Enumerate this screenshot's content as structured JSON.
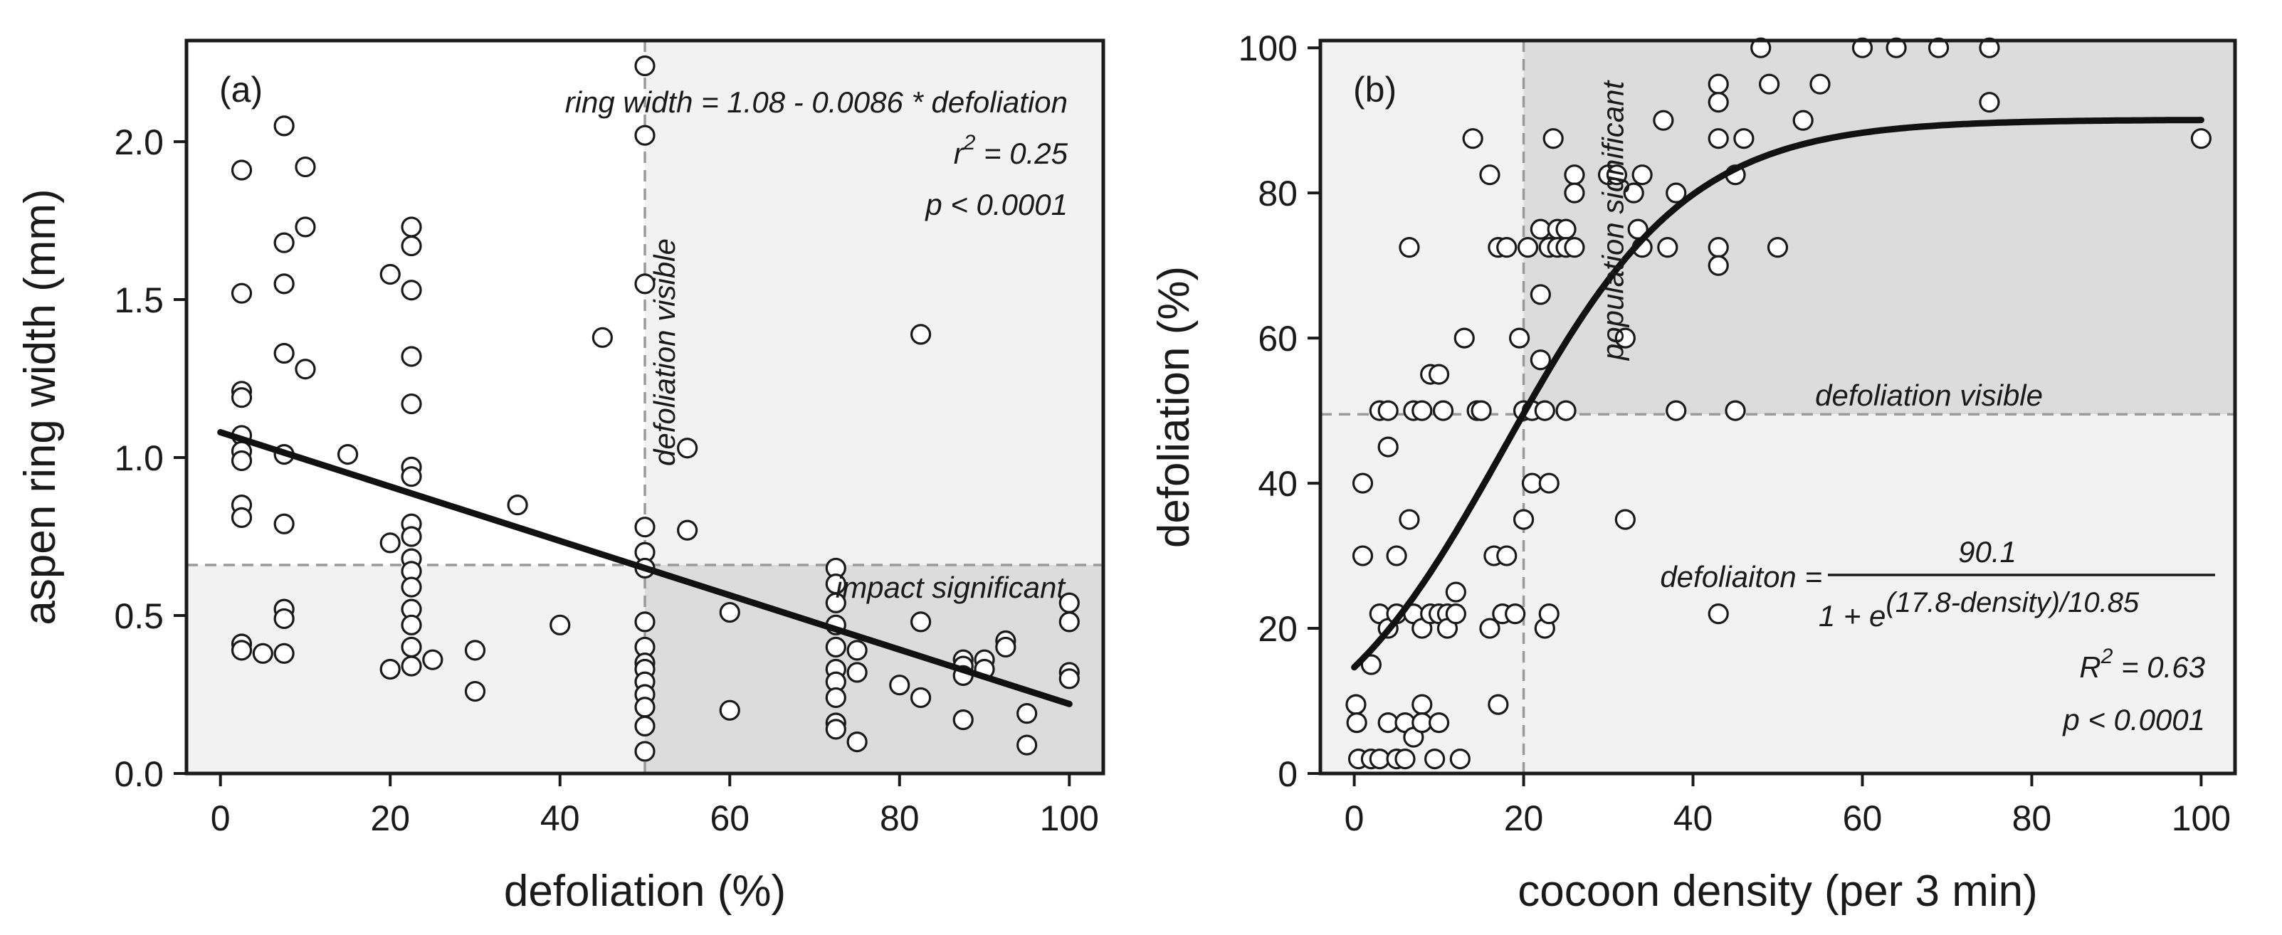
{
  "chart_data": [
    {
      "panel": "(a)",
      "type": "scatter",
      "xlabel": "defoliation (%)",
      "ylabel": "aspen ring width (mm)",
      "xlim": [
        -4,
        104
      ],
      "ylim": [
        0,
        2.32
      ],
      "xticks": [
        0,
        20,
        40,
        60,
        80,
        100
      ],
      "yticks": [
        0.0,
        0.5,
        1.0,
        1.5,
        2.0
      ],
      "ytick_labels": [
        "0.0",
        "0.5",
        "1.0",
        "1.5",
        "2.0"
      ],
      "thresholds": {
        "x": 50,
        "y": 0.66
      },
      "annotations": {
        "equation": "ring width = 1.08 - 0.0086 * defoliation",
        "r2_prefix": "r",
        "r2_exp": "2",
        "r2_value": " = 0.25",
        "p": "p < 0.0001",
        "vertical_label": "defoliation visible",
        "horizontal_label": "impact significant"
      },
      "fit": {
        "type": "linear",
        "intercept": 1.08,
        "slope": -0.0086,
        "x_range": [
          0,
          100
        ]
      },
      "points": [
        [
          2.5,
          1.91
        ],
        [
          2.5,
          1.52
        ],
        [
          2.5,
          1.21
        ],
        [
          2.5,
          1.19
        ],
        [
          2.5,
          1.07
        ],
        [
          2.5,
          1.02
        ],
        [
          2.5,
          0.99
        ],
        [
          2.5,
          0.85
        ],
        [
          2.5,
          0.81
        ],
        [
          2.5,
          0.41
        ],
        [
          2.5,
          0.39
        ],
        [
          5,
          0.38
        ],
        [
          7.5,
          2.05
        ],
        [
          7.5,
          1.68
        ],
        [
          7.5,
          1.55
        ],
        [
          7.5,
          1.33
        ],
        [
          7.5,
          1.01
        ],
        [
          7.5,
          0.79
        ],
        [
          7.5,
          0.52
        ],
        [
          7.5,
          0.49
        ],
        [
          7.5,
          0.38
        ],
        [
          10,
          1.92
        ],
        [
          10,
          1.73
        ],
        [
          10,
          1.28
        ],
        [
          15,
          1.01
        ],
        [
          20,
          1.58
        ],
        [
          20,
          0.73
        ],
        [
          20,
          0.33
        ],
        [
          22.5,
          1.73
        ],
        [
          22.5,
          1.67
        ],
        [
          22.5,
          1.53
        ],
        [
          22.5,
          1.32
        ],
        [
          22.5,
          1.17
        ],
        [
          22.5,
          0.97
        ],
        [
          22.5,
          0.94
        ],
        [
          22.5,
          0.79
        ],
        [
          22.5,
          0.75
        ],
        [
          22.5,
          0.68
        ],
        [
          22.5,
          0.64
        ],
        [
          22.5,
          0.59
        ],
        [
          22.5,
          0.52
        ],
        [
          22.5,
          0.47
        ],
        [
          22.5,
          0.4
        ],
        [
          22.5,
          0.34
        ],
        [
          25,
          0.36
        ],
        [
          30,
          0.39
        ],
        [
          30,
          0.26
        ],
        [
          35,
          0.85
        ],
        [
          40,
          0.47
        ],
        [
          45,
          1.38
        ],
        [
          50,
          2.24
        ],
        [
          50,
          2.02
        ],
        [
          50,
          1.55
        ],
        [
          50,
          0.78
        ],
        [
          50,
          0.7
        ],
        [
          50,
          0.65
        ],
        [
          50,
          0.48
        ],
        [
          50,
          0.4
        ],
        [
          50,
          0.35
        ],
        [
          50,
          0.33
        ],
        [
          50,
          0.29
        ],
        [
          50,
          0.25
        ],
        [
          50,
          0.21
        ],
        [
          50,
          0.15
        ],
        [
          50,
          0.07
        ],
        [
          55,
          1.03
        ],
        [
          55,
          0.77
        ],
        [
          60,
          0.51
        ],
        [
          60,
          0.2
        ],
        [
          72.5,
          0.65
        ],
        [
          72.5,
          0.6
        ],
        [
          72.5,
          0.54
        ],
        [
          72.5,
          0.47
        ],
        [
          72.5,
          0.4
        ],
        [
          72.5,
          0.33
        ],
        [
          72.5,
          0.29
        ],
        [
          72.5,
          0.24
        ],
        [
          72.5,
          0.16
        ],
        [
          72.5,
          0.14
        ],
        [
          75,
          0.39
        ],
        [
          75,
          0.32
        ],
        [
          75,
          0.1
        ],
        [
          80,
          0.28
        ],
        [
          82.5,
          1.39
        ],
        [
          82.5,
          0.48
        ],
        [
          82.5,
          0.24
        ],
        [
          87.5,
          0.36
        ],
        [
          87.5,
          0.34
        ],
        [
          87.5,
          0.31
        ],
        [
          87.5,
          0.17
        ],
        [
          90,
          0.36
        ],
        [
          90,
          0.33
        ],
        [
          92.5,
          0.42
        ],
        [
          92.5,
          0.4
        ],
        [
          95,
          0.19
        ],
        [
          95,
          0.09
        ],
        [
          100,
          0.54
        ],
        [
          100,
          0.48
        ],
        [
          100,
          0.32
        ],
        [
          100,
          0.3
        ]
      ]
    },
    {
      "panel": "(b)",
      "type": "scatter",
      "xlabel": "cocoon density (per 3 min)",
      "ylabel": "defoliation (%)",
      "xlim": [
        -4,
        104
      ],
      "ylim": [
        0,
        101
      ],
      "xticks": [
        0,
        20,
        40,
        60,
        80,
        100
      ],
      "yticks": [
        0,
        20,
        40,
        60,
        80,
        100
      ],
      "thresholds": {
        "x": 20,
        "y": 49.5
      },
      "annotations": {
        "vertical_label": "population significant",
        "horizontal_label": "defoliation visible",
        "eq_lhs": "defoliaiton =",
        "eq_numerator": "90.1",
        "eq_denominator_base": "1 + e",
        "eq_denominator_exp": "(17.8-density)/10.85",
        "r2_prefix": "R",
        "r2_exp": "2",
        "r2_value": " = 0.63",
        "p": "p < 0.0001"
      },
      "fit": {
        "type": "logistic",
        "asymptote": 90.1,
        "midpoint": 17.8,
        "scale": 10.85,
        "x_range": [
          0,
          100
        ]
      },
      "points": [
        [
          0.2,
          9.5
        ],
        [
          0.3,
          7
        ],
        [
          0.5,
          2
        ],
        [
          1,
          30
        ],
        [
          1,
          40
        ],
        [
          2,
          15
        ],
        [
          2,
          2
        ],
        [
          3,
          50
        ],
        [
          3,
          22
        ],
        [
          3,
          2
        ],
        [
          4,
          45
        ],
        [
          4,
          50
        ],
        [
          4,
          20
        ],
        [
          4,
          7
        ],
        [
          5,
          30
        ],
        [
          5,
          22
        ],
        [
          5,
          2
        ],
        [
          6,
          2
        ],
        [
          6,
          7
        ],
        [
          6.5,
          72.5
        ],
        [
          6.5,
          35
        ],
        [
          7,
          50
        ],
        [
          7,
          22
        ],
        [
          7,
          5
        ],
        [
          8,
          50
        ],
        [
          8,
          20
        ],
        [
          8,
          9.5
        ],
        [
          8,
          7
        ],
        [
          9,
          55
        ],
        [
          9,
          22
        ],
        [
          9.5,
          2
        ],
        [
          10,
          55
        ],
        [
          10,
          22
        ],
        [
          10,
          7
        ],
        [
          10.5,
          50
        ],
        [
          11,
          22
        ],
        [
          11,
          20
        ],
        [
          12,
          25
        ],
        [
          12,
          22
        ],
        [
          12.5,
          2
        ],
        [
          13,
          60
        ],
        [
          14,
          87.5
        ],
        [
          14.5,
          50
        ],
        [
          15,
          50
        ],
        [
          16,
          82.5
        ],
        [
          16,
          20
        ],
        [
          16.5,
          30
        ],
        [
          17,
          72.5
        ],
        [
          17,
          9.5
        ],
        [
          17.5,
          22
        ],
        [
          18,
          72.5
        ],
        [
          18,
          30
        ],
        [
          19,
          22
        ],
        [
          19.5,
          60
        ],
        [
          20,
          50
        ],
        [
          20,
          35
        ],
        [
          20.5,
          72.5
        ],
        [
          21,
          50
        ],
        [
          21,
          40
        ],
        [
          22,
          75
        ],
        [
          22,
          66
        ],
        [
          22,
          57
        ],
        [
          22.5,
          50
        ],
        [
          22.5,
          20
        ],
        [
          23,
          72.5
        ],
        [
          23,
          40
        ],
        [
          23,
          22
        ],
        [
          23.5,
          87.5
        ],
        [
          24,
          75
        ],
        [
          24,
          72.5
        ],
        [
          25,
          75
        ],
        [
          25,
          72.5
        ],
        [
          25,
          50
        ],
        [
          26,
          82.5
        ],
        [
          26,
          80
        ],
        [
          26,
          72.5
        ],
        [
          30,
          82.5
        ],
        [
          31,
          82.5
        ],
        [
          32,
          60
        ],
        [
          32,
          35
        ],
        [
          33,
          80
        ],
        [
          33.5,
          75
        ],
        [
          34,
          82.5
        ],
        [
          34,
          72.5
        ],
        [
          36.5,
          90
        ],
        [
          37,
          72.5
        ],
        [
          38,
          80
        ],
        [
          38,
          50
        ],
        [
          43,
          95
        ],
        [
          43,
          92.5
        ],
        [
          43,
          87.5
        ],
        [
          43,
          72.5
        ],
        [
          43,
          70
        ],
        [
          43,
          22
        ],
        [
          45,
          82.5
        ],
        [
          45,
          50
        ],
        [
          46,
          87.5
        ],
        [
          48,
          100
        ],
        [
          49,
          95
        ],
        [
          50,
          72.5
        ],
        [
          53,
          90
        ],
        [
          55,
          95
        ],
        [
          60,
          100
        ],
        [
          64,
          100
        ],
        [
          69,
          100
        ],
        [
          75,
          100
        ],
        [
          75,
          92.5
        ],
        [
          100,
          87.5
        ]
      ]
    }
  ]
}
